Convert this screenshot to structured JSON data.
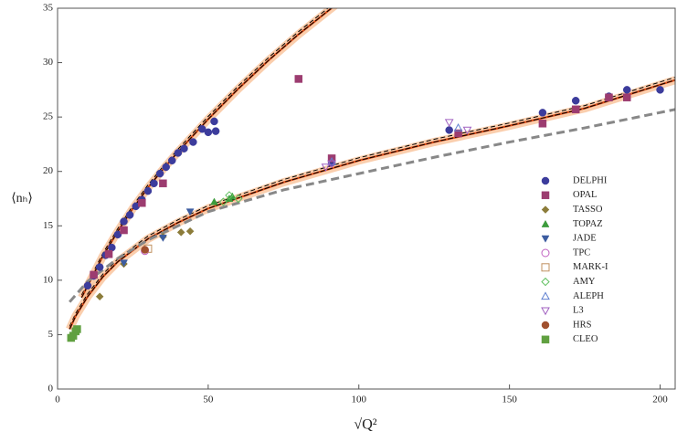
{
  "chart_data": {
    "type": "scatter",
    "x_label": "√Q²",
    "y_label": "⟨nₕ⟩",
    "xlim": [
      0,
      205
    ],
    "ylim": [
      0,
      35
    ],
    "xticks": [
      0,
      50,
      100,
      150,
      200
    ],
    "yticks": [
      0,
      5,
      10,
      15,
      20,
      25,
      30,
      35
    ],
    "curves": [
      {
        "color": "#e0501a",
        "band_color": "#f8b98a",
        "style": "solid",
        "x": [
          8,
          10,
          15,
          20,
          25,
          30,
          35,
          40,
          45,
          50,
          60,
          70,
          80,
          90,
          96
        ],
        "values": [
          8.4,
          9.5,
          12.2,
          14.5,
          16.6,
          18.5,
          20.2,
          21.8,
          23.3,
          24.8,
          27.6,
          30.2,
          32.6,
          34.8,
          36.1
        ]
      },
      {
        "color": "#e0501a",
        "band_color": "#f8b98a",
        "style": "solid",
        "x": [
          4,
          6,
          10,
          15,
          20,
          30,
          40,
          50,
          75,
          100,
          125,
          150,
          175,
          205
        ],
        "values": [
          5.5,
          6.7,
          8.5,
          10.3,
          11.7,
          13.8,
          15.3,
          16.6,
          19.0,
          21.0,
          22.7,
          24.2,
          25.8,
          28.4
        ]
      },
      {
        "color": "#888888",
        "style": "dashed",
        "x": [
          4,
          10,
          20,
          30,
          50,
          75,
          100,
          125,
          150,
          175,
          205
        ],
        "values": [
          8.0,
          9.9,
          12.0,
          13.7,
          16.3,
          18.3,
          19.8,
          21.3,
          22.7,
          24.0,
          25.7
        ]
      }
    ],
    "series": [
      {
        "name": "DELPHI",
        "color": "#3c3c9c",
        "marker": "circle",
        "filled": true,
        "x": [
          10,
          12,
          14,
          16,
          18,
          20,
          22,
          24,
          26,
          28,
          30,
          32,
          34,
          36,
          38,
          40,
          42,
          45,
          48,
          50,
          52,
          52.5,
          91,
          130,
          161,
          172,
          183,
          189,
          200
        ],
        "values": [
          9.5,
          10.4,
          11.2,
          12.3,
          13.0,
          14.2,
          15.4,
          16.0,
          16.8,
          17.4,
          18.2,
          18.9,
          19.8,
          20.4,
          21.0,
          21.7,
          22.1,
          22.7,
          23.9,
          23.6,
          24.6,
          23.7,
          20.8,
          23.8,
          25.4,
          26.5,
          26.9,
          27.5,
          27.5
        ]
      },
      {
        "name": "OPAL",
        "color": "#9c3c70",
        "marker": "square",
        "filled": true,
        "x": [
          12,
          17,
          22,
          28,
          35,
          80,
          91,
          133,
          161,
          172,
          183,
          189
        ],
        "values": [
          10.5,
          12.4,
          14.6,
          17.1,
          18.9,
          28.5,
          21.2,
          23.5,
          24.4,
          25.7,
          26.8,
          26.8
        ]
      },
      {
        "name": "TASSO",
        "color": "#8c7c3a",
        "marker": "diamond",
        "filled": true,
        "x": [
          14,
          22,
          35,
          41,
          44
        ],
        "values": [
          8.5,
          11.5,
          14.0,
          14.4,
          14.5
        ]
      },
      {
        "name": "TOPAZ",
        "color": "#3c9c3c",
        "marker": "triangle",
        "filled": true,
        "x": [
          52,
          57,
          58
        ],
        "values": [
          17.2,
          17.5,
          17.7
        ]
      },
      {
        "name": "JADE",
        "color": "#3c5ca0",
        "marker": "down",
        "filled": true,
        "x": [
          22,
          35,
          44
        ],
        "values": [
          11.6,
          13.9,
          16.3
        ]
      },
      {
        "name": "TPC",
        "color": "#c060c0",
        "marker": "circle",
        "filled": false,
        "x": [
          29
        ],
        "values": [
          12.7
        ]
      },
      {
        "name": "MARK-I",
        "color": "#c09060",
        "marker": "square",
        "filled": false,
        "x": [
          30
        ],
        "values": [
          12.9
        ]
      },
      {
        "name": "AMY",
        "color": "#60c060",
        "marker": "diamond",
        "filled": false,
        "x": [
          55,
          57,
          60
        ],
        "values": [
          17.2,
          17.8,
          17.5
        ]
      },
      {
        "name": "ALEPH",
        "color": "#6080d0",
        "marker": "triangle",
        "filled": false,
        "x": [
          91,
          133
        ],
        "values": [
          20.9,
          24.0
        ]
      },
      {
        "name": "L3",
        "color": "#a060c0",
        "marker": "down",
        "filled": false,
        "x": [
          89,
          91,
          130,
          136
        ],
        "values": [
          20.4,
          20.7,
          24.5,
          23.8
        ]
      },
      {
        "name": "HRS",
        "color": "#a0502e",
        "marker": "circle",
        "filled": true,
        "x": [
          29
        ],
        "values": [
          12.8
        ]
      },
      {
        "name": "CLEO",
        "color": "#60a040",
        "marker": "square",
        "filled": true,
        "x": [
          4.5,
          5.2,
          6,
          6.5
        ],
        "values": [
          4.7,
          4.9,
          5.3,
          5.5
        ]
      }
    ]
  }
}
